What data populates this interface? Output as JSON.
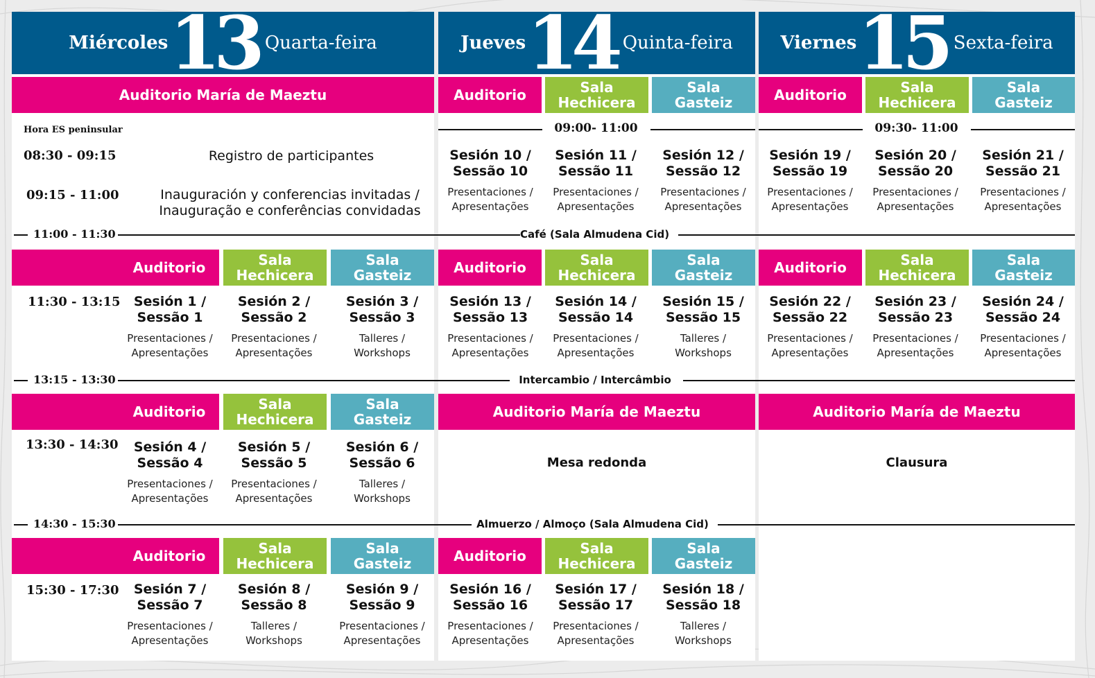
{
  "days": [
    {
      "name_es": "Miércoles",
      "number": "13",
      "name_pt": "Quarta-feira"
    },
    {
      "name_es": "Jueves",
      "number": "14",
      "name_pt": "Quinta-feira"
    },
    {
      "name_es": "Viernes",
      "number": "15",
      "name_pt": "Sexta-feira"
    }
  ],
  "colors": {
    "header_blue": "#005a8c",
    "pink": "#e6007e",
    "green": "#95c23c",
    "teal": "#56aebf"
  },
  "rooms": {
    "auditorio": "Auditorio",
    "auditorio_full": "Auditorio María de Maeztu",
    "hechicera_l1": "Sala",
    "hechicera_l2": "Hechicera",
    "gasteiz_l1": "Sala",
    "gasteiz_l2": "Gasteiz"
  },
  "kinds": {
    "pres_l1": "Presentaciones /",
    "pres_l2": "Apresentações",
    "talleres_l1": "Talleres /",
    "talleres_l2": "Workshops"
  },
  "wed_morning": {
    "note": "Hora ES peninsular",
    "time1": "08:30 - 09:15",
    "event1": "Registro de participantes",
    "time2": "09:15 - 11:00",
    "event2_l1": "Inauguración y conferencias invitadas /",
    "event2_l2": "Inauguração e conferências convidadas"
  },
  "morning_times": {
    "thu": "09:00- 11:00",
    "fri": "09:30- 11:00"
  },
  "breaks": [
    {
      "time": "11:00 - 11:30",
      "label": "Café (Sala Almudena Cid)"
    },
    {
      "time": "13:15 - 13:30",
      "label": "Intercambio / Intercâmbio"
    },
    {
      "time": "14:30 - 15:30",
      "label": "Almuerzo / Almoço (Sala Almudena Cid)"
    }
  ],
  "times": {
    "b1": "11:30 - 13:15",
    "b2": "13:30 - 14:30",
    "b3": "15:30 - 17:30"
  },
  "sessions": {
    "s1": [
      "Sesión 1 /",
      "Sessão 1"
    ],
    "s2": [
      "Sesión 2 /",
      "Sessão 2"
    ],
    "s3": [
      "Sesión 3 /",
      "Sessão 3"
    ],
    "s4": [
      "Sesión 4 /",
      "Sessão 4"
    ],
    "s5": [
      "Sesión 5 /",
      "Sessão 5"
    ],
    "s6": [
      "Sesión 6 /",
      "Sessão 6"
    ],
    "s7": [
      "Sesión 7 /",
      "Sessão 7"
    ],
    "s8": [
      "Sesión 8 /",
      "Sessão 8"
    ],
    "s9": [
      "Sesión 9 /",
      "Sessão 9"
    ],
    "s10": [
      "Sesión 10 /",
      "Sessão 10"
    ],
    "s11": [
      "Sesión 11 /",
      "Sessão 11"
    ],
    "s12": [
      "Sesión 12 /",
      "Sessão 12"
    ],
    "s13": [
      "Sesión 13 /",
      "Sessão 13"
    ],
    "s14": [
      "Sesión 14 /",
      "Sessão 14"
    ],
    "s15": [
      "Sesión 15 /",
      "Sessão 15"
    ],
    "s16": [
      "Sesión 16 /",
      "Sessão 16"
    ],
    "s17": [
      "Sesión 17 /",
      "Sessão 17"
    ],
    "s18": [
      "Sesión 18 /",
      "Sessão 18"
    ],
    "s19": [
      "Sesión 19 /",
      "Sessão 19"
    ],
    "s20": [
      "Sesión 20 /",
      "Sessão 20"
    ],
    "s21": [
      "Sesión 21 /",
      "Sessão 21"
    ],
    "s22": [
      "Sesión 22 /",
      "Sessão 22"
    ],
    "s23": [
      "Sesión 23 /",
      "Sessão 23"
    ],
    "s24": [
      "Sesión 24 /",
      "Sessão 24"
    ]
  },
  "thu_afternoon": "Mesa redonda",
  "fri_afternoon": "Clausura"
}
